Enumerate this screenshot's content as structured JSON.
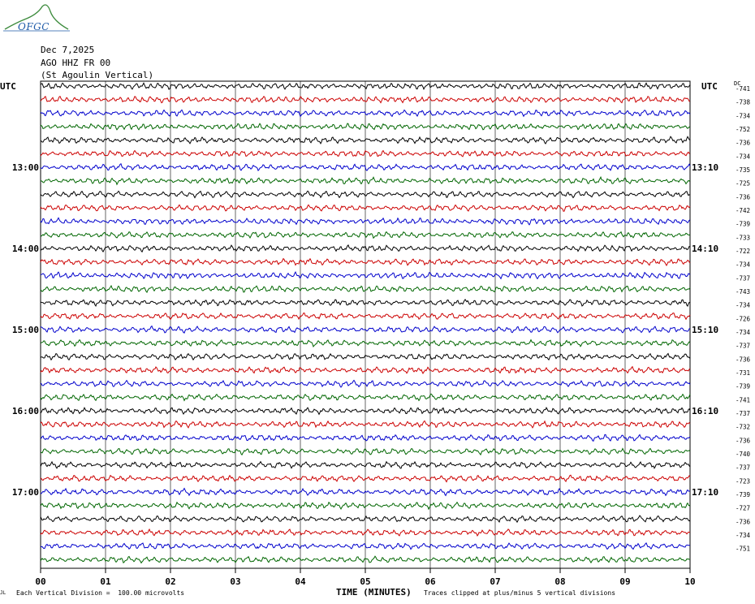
{
  "header": {
    "logo_text": "OFGC",
    "date": "Dec 7,2025",
    "station": "AGO HHZ FR 00",
    "station_name": "(St Agoulin Vertical)"
  },
  "axes": {
    "left_utc": "UTC",
    "right_utc": "UTC",
    "dc_label": "DC"
  },
  "footer": {
    "scale_note": "Each Vertical Division =  100.00 microvolts",
    "x_title": "TIME (MINUTES)",
    "clip_note": "Traces clipped at plus/minus 5 vertical divisions",
    "corner_mark": "JL"
  },
  "colors": {
    "trace_cycle": [
      "#000000",
      "#cc0000",
      "#0000cc",
      "#006600"
    ],
    "grid": "#000000"
  },
  "chart_data": {
    "type": "line",
    "title": "",
    "xlabel": "TIME (MINUTES)",
    "ylabel": "",
    "xlim": [
      0,
      10
    ],
    "x_ticks": [
      "00",
      "01",
      "02",
      "03",
      "04",
      "05",
      "06",
      "07",
      "08",
      "09",
      "10"
    ],
    "grid": true,
    "n_traces": 36,
    "left_hour_labels": [
      {
        "row": 6,
        "label": "13:00"
      },
      {
        "row": 12,
        "label": "14:00"
      },
      {
        "row": 18,
        "label": "15:00"
      },
      {
        "row": 24,
        "label": "16:00"
      },
      {
        "row": 30,
        "label": "17:00"
      }
    ],
    "right_hour_labels": [
      {
        "row": 6,
        "label": "13:10"
      },
      {
        "row": 12,
        "label": "14:10"
      },
      {
        "row": 18,
        "label": "15:10"
      },
      {
        "row": 24,
        "label": "16:10"
      },
      {
        "row": 30,
        "label": "17:10"
      }
    ],
    "dc_offsets": [
      "-741",
      "-738",
      "-734",
      "-752",
      "-736",
      "-734",
      "-735",
      "-725",
      "-736",
      "-742",
      "-739",
      "-733",
      "-722",
      "-734",
      "-737",
      "-743",
      "-734",
      "-726",
      "-734",
      "-737",
      "-736",
      "-731",
      "-739",
      "-741",
      "-737",
      "-732",
      "-736",
      "-740",
      "-737",
      "-723",
      "-739",
      "-727",
      "-736",
      "-734",
      "-751"
    ]
  }
}
